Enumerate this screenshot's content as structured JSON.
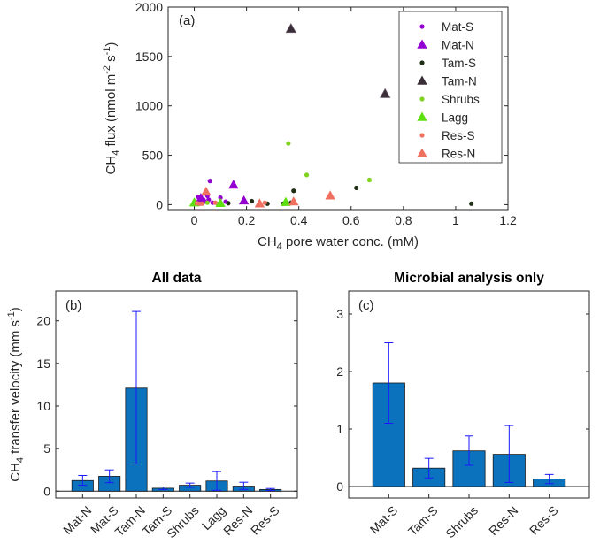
{
  "colors": {
    "mat": "#9400d3",
    "tam": "#1e2d14",
    "tamn": "#3a2e38",
    "shrubs": "#7fd320",
    "lagg": "#5ee010",
    "res": "#f07060",
    "bar": "#0b72bd",
    "err": "#1a1aff"
  },
  "chart_data": [
    {
      "id": "a",
      "type": "scatter",
      "panel_label": "(a)",
      "xlabel": "CH4 pore water conc. (mM)",
      "ylabel": "CH4 flux (nmol m-2 s-1)",
      "xlabel_parts": [
        "CH",
        "4",
        " pore water conc. (mM)"
      ],
      "ylabel_parts": [
        "CH",
        "4",
        " flux (nmol m",
        "-2",
        " s",
        "-1",
        ")"
      ],
      "xlim": [
        -0.1,
        1.2
      ],
      "ylim": [
        -50,
        2000
      ],
      "xticks": [
        0,
        0.2,
        0.4,
        0.6,
        0.8,
        1,
        1.2
      ],
      "xtick_labels": [
        "0",
        "0.2",
        "0.4",
        "0.6",
        "0.8",
        "1",
        "1.2"
      ],
      "yticks": [
        0,
        500,
        1000,
        1500,
        2000
      ],
      "ytick_labels": [
        "0",
        "500",
        "1000",
        "1500",
        "2000"
      ],
      "legend_position": "top-right",
      "series": [
        {
          "name": "Mat-S",
          "marker": "dot",
          "color_key": "mat",
          "points": [
            [
              0.015,
              80
            ],
            [
              0.025,
              80
            ],
            [
              0.035,
              50
            ],
            [
              0.04,
              30
            ],
            [
              0.05,
              90
            ],
            [
              0.055,
              50
            ],
            [
              0.06,
              240
            ],
            [
              0.07,
              20
            ],
            [
              0.1,
              70
            ],
            [
              0.12,
              30
            ]
          ]
        },
        {
          "name": "Mat-N",
          "marker": "triangle",
          "color_key": "mat",
          "points": [
            [
              0.025,
              65
            ],
            [
              0.15,
              200
            ],
            [
              0.19,
              40
            ]
          ]
        },
        {
          "name": "Tam-S",
          "marker": "dot",
          "color_key": "tam",
          "points": [
            [
              0.02,
              10
            ],
            [
              0.13,
              15
            ],
            [
              0.22,
              35
            ],
            [
              0.28,
              10
            ],
            [
              0.34,
              10
            ],
            [
              0.37,
              20
            ],
            [
              0.38,
              140
            ],
            [
              0.62,
              170
            ],
            [
              1.06,
              10
            ]
          ]
        },
        {
          "name": "Tam-N",
          "marker": "triangle",
          "color_key": "tamn",
          "points": [
            [
              0.37,
              1780
            ],
            [
              0.73,
              1120
            ]
          ]
        },
        {
          "name": "Shrubs",
          "marker": "dot",
          "color_key": "shrubs",
          "points": [
            [
              0.05,
              20
            ],
            [
              0.09,
              10
            ],
            [
              0.36,
              620
            ],
            [
              0.43,
              300
            ],
            [
              0.67,
              250
            ]
          ]
        },
        {
          "name": "Lagg",
          "marker": "triangle",
          "color_key": "lagg",
          "points": [
            [
              0.0,
              20
            ],
            [
              0.1,
              15
            ],
            [
              0.35,
              25
            ]
          ]
        },
        {
          "name": "Res-S",
          "marker": "dot",
          "color_key": "res",
          "points": [
            [
              0.01,
              15
            ],
            [
              0.02,
              10
            ],
            [
              0.03,
              10
            ],
            [
              0.08,
              20
            ],
            [
              0.27,
              20
            ]
          ]
        },
        {
          "name": "Res-N",
          "marker": "triangle",
          "color_key": "res",
          "points": [
            [
              0.045,
              130
            ],
            [
              0.25,
              10
            ],
            [
              0.38,
              30
            ],
            [
              0.52,
              90
            ]
          ]
        }
      ]
    },
    {
      "id": "b",
      "type": "bar",
      "title": "All data",
      "panel_label": "(b)",
      "ylabel": "CH4 transfer velocity (mm s-1)",
      "ylabel_parts": [
        "CH",
        "4",
        " transfer velocity (mm s",
        "-1",
        ")"
      ],
      "categories": [
        "Mat-N",
        "Mat-S",
        "Tam-N",
        "Tam-S",
        "Shrubs",
        "Lagg",
        "Res-N",
        "Res-S"
      ],
      "values": [
        1.25,
        1.75,
        12.1,
        0.35,
        0.7,
        1.2,
        0.6,
        0.2
      ],
      "error_low": [
        0.7,
        1.0,
        3.2,
        0.2,
        0.45,
        0.1,
        0.2,
        0.08
      ],
      "error_high": [
        1.85,
        2.5,
        21.1,
        0.5,
        0.95,
        2.3,
        1.05,
        0.32
      ],
      "ylim": [
        -0.8,
        23.5
      ],
      "yticks": [
        0,
        5,
        10,
        15,
        20
      ],
      "ytick_labels": [
        "0",
        "5",
        "10",
        "15",
        "20"
      ]
    },
    {
      "id": "c",
      "type": "bar",
      "title": "Microbial analysis only",
      "panel_label": "(c)",
      "categories": [
        "Mat-S",
        "Tam-S",
        "Shrubs",
        "Res-N",
        "Res-S"
      ],
      "values": [
        1.8,
        0.32,
        0.62,
        0.56,
        0.13
      ],
      "error_low": [
        1.1,
        0.15,
        0.37,
        0.07,
        0.05
      ],
      "error_high": [
        2.5,
        0.49,
        0.88,
        1.06,
        0.21
      ],
      "ylim": [
        -0.2,
        3.4
      ],
      "yticks": [
        0,
        1,
        2,
        3
      ],
      "ytick_labels": [
        "0",
        "1",
        "2",
        "3"
      ]
    }
  ]
}
